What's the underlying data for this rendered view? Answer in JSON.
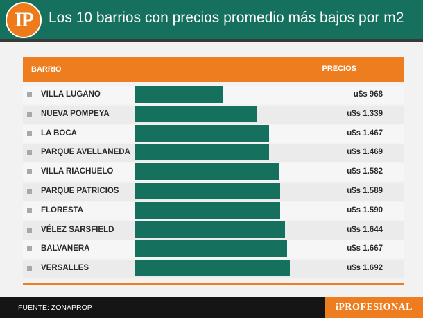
{
  "header": {
    "logo": "IP",
    "title": "Los 10 barrios con precios promedio más bajos por m2"
  },
  "table": {
    "col_left": "BARRIO",
    "col_right": "PRECIOS"
  },
  "footer": {
    "source": "FUENTE: ZONAPROP",
    "brand": "iPROFESIONAL"
  },
  "colors": {
    "accent": "#ee7d1f",
    "bar": "#16705e",
    "header": "#16705e"
  },
  "chart_data": {
    "type": "bar",
    "orientation": "horizontal",
    "title": "Los 10 barrios con precios promedio más bajos por m2",
    "xlabel": "PRECIOS",
    "ylabel": "BARRIO",
    "categories": [
      "VILLA LUGANO",
      "NUEVA POMPEYA",
      "LA BOCA",
      "PARQUE AVELLANEDA",
      "VILLA RIACHUELO",
      "PARQUE PATRICIOS",
      "FLORESTA",
      "VÉLEZ SARSFIELD",
      "BALVANERA",
      "VERSALLES"
    ],
    "values": [
      968,
      1339,
      1467,
      1469,
      1582,
      1589,
      1590,
      1644,
      1667,
      1692
    ],
    "value_labels": [
      "u$s 968",
      "u$s 1.339",
      "u$s 1.467",
      "u$s 1.469",
      "u$s 1.582",
      "u$s 1.589",
      "u$s 1.590",
      "u$s 1.644",
      "u$s 1.667",
      "u$s 1.692"
    ],
    "grid": false
  }
}
